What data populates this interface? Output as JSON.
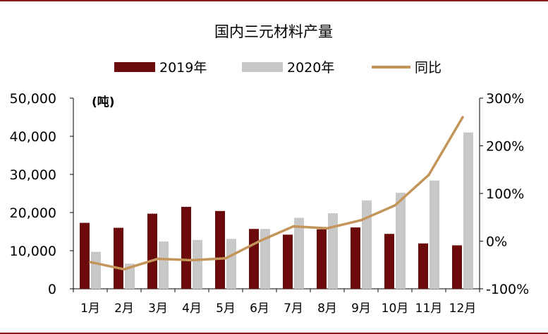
{
  "chart_data": {
    "type": "bar",
    "title": "国内三元材料产量",
    "unit_label": "(吨)",
    "categories": [
      "1月",
      "2月",
      "3月",
      "4月",
      "5月",
      "6月",
      "7月",
      "8月",
      "9月",
      "10月",
      "11月",
      "12月"
    ],
    "series": [
      {
        "name": "2019年",
        "kind": "bar",
        "axis": "left",
        "color": "#6b0a0a",
        "values": [
          17300,
          16000,
          19700,
          21500,
          20400,
          15700,
          14200,
          15600,
          16100,
          14400,
          11900,
          11400
        ]
      },
      {
        "name": "2020年",
        "kind": "bar",
        "axis": "left",
        "color": "#c8c8c8",
        "values": [
          9700,
          6600,
          12400,
          12800,
          13100,
          15700,
          18600,
          19800,
          23200,
          25200,
          28400,
          41000
        ]
      },
      {
        "name": "同比",
        "kind": "line",
        "axis": "right",
        "color": "#c4955a",
        "values": [
          -44,
          -59,
          -37,
          -40,
          -36,
          0,
          31,
          27,
          44,
          75,
          139,
          260
        ]
      }
    ],
    "y_left": {
      "min": 0,
      "max": 50000,
      "ticks": [
        0,
        10000,
        20000,
        30000,
        40000,
        50000
      ],
      "tick_labels": [
        "0",
        "10,000",
        "20,000",
        "30,000",
        "40,000",
        "50,000"
      ]
    },
    "y_right": {
      "min": -100,
      "max": 300,
      "ticks": [
        -100,
        0,
        100,
        200,
        300
      ],
      "tick_labels": [
        "-100%",
        "0%",
        "100%",
        "200%",
        "300%"
      ]
    },
    "legend_position": "top-center",
    "grid": false
  }
}
